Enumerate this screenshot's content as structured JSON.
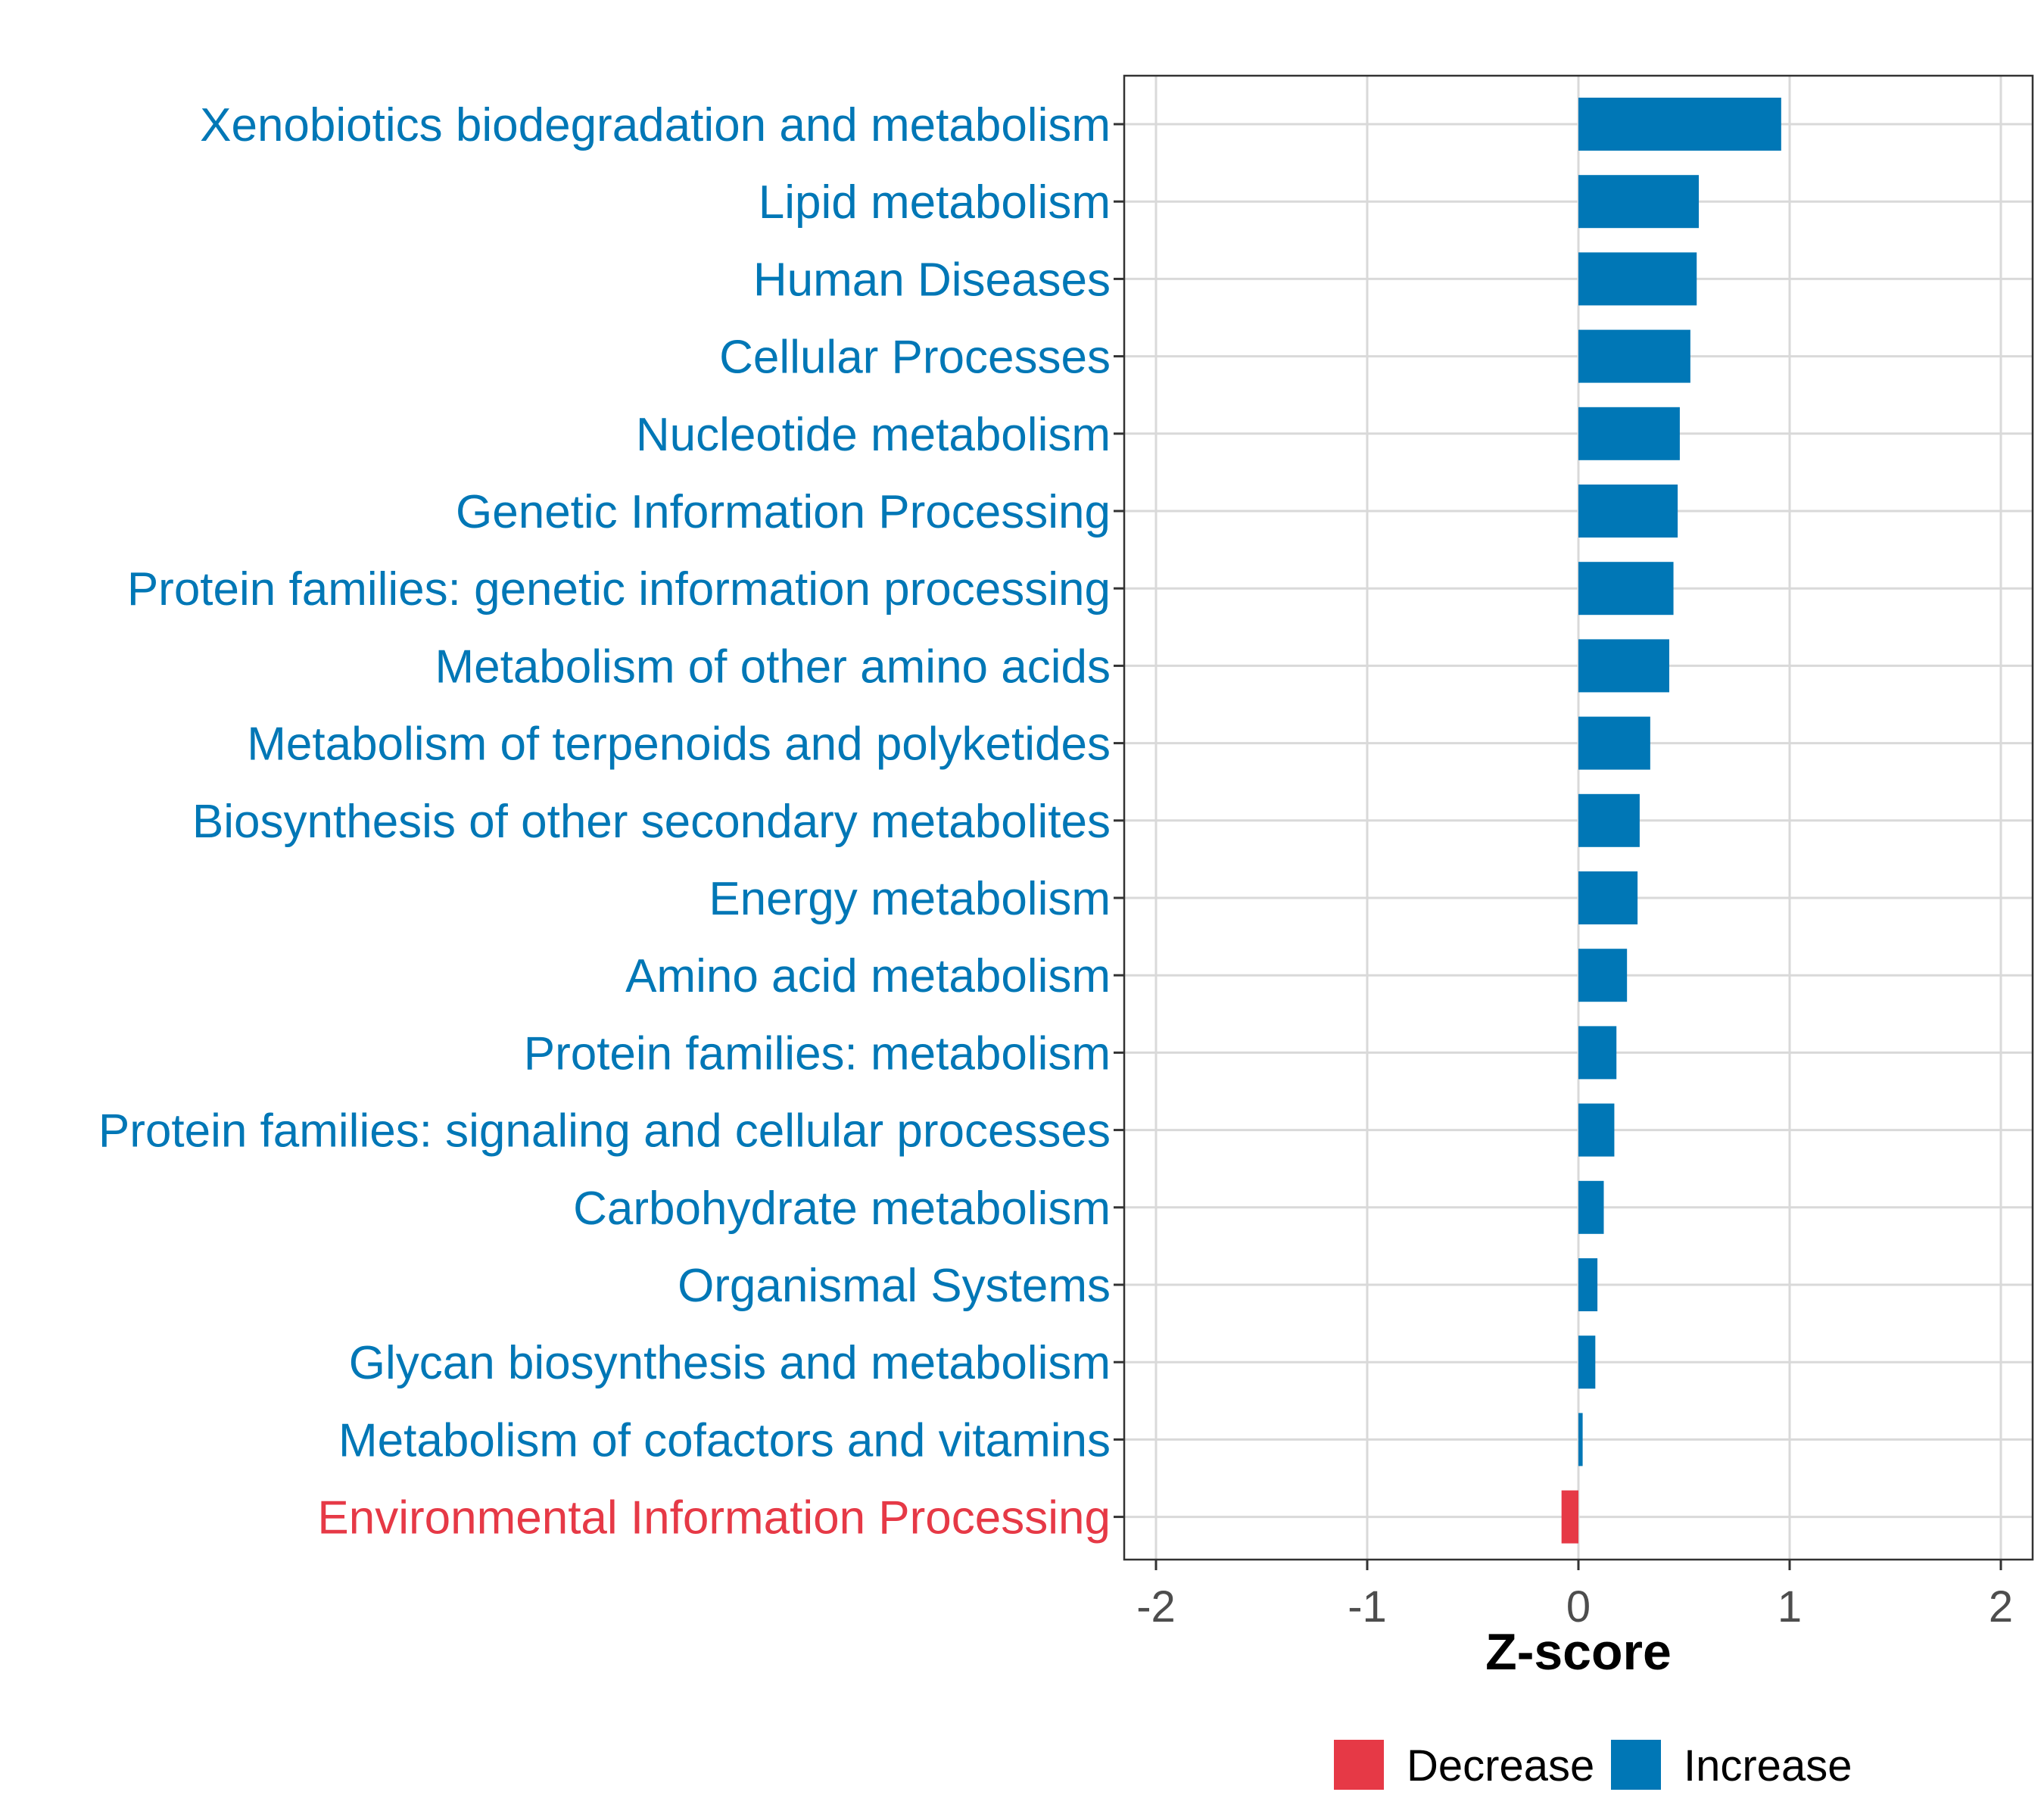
{
  "chart_data": {
    "type": "bar",
    "orientation": "horizontal",
    "xlabel": "Z-score",
    "xlim": [
      -2.15,
      2.15
    ],
    "x_ticks": [
      -2,
      -1,
      0,
      1,
      2
    ],
    "x_tick_labels": [
      "-2",
      "-1",
      "0",
      "1",
      "2"
    ],
    "grid": true,
    "legend_position": "bottom",
    "categories": [
      "Xenobiotics biodegradation and metabolism",
      "Lipid metabolism",
      "Human Diseases",
      "Cellular Processes",
      "Nucleotide metabolism",
      "Genetic Information Processing",
      "Protein families: genetic information processing",
      "Metabolism of other amino acids",
      "Metabolism of terpenoids and polyketides",
      "Biosynthesis of other secondary metabolites",
      "Energy metabolism",
      "Amino acid metabolism",
      "Protein families: metabolism",
      "Protein families: signaling and cellular processes",
      "Carbohydrate metabolism",
      "Organismal Systems",
      "Glycan biosynthesis and metabolism",
      "Metabolism of cofactors and vitamins",
      "Environmental Information Processing"
    ],
    "values": [
      0.96,
      0.57,
      0.56,
      0.53,
      0.48,
      0.47,
      0.45,
      0.43,
      0.34,
      0.29,
      0.28,
      0.23,
      0.18,
      0.17,
      0.12,
      0.09,
      0.08,
      0.02,
      -0.08
    ],
    "groups": [
      "Increase",
      "Increase",
      "Increase",
      "Increase",
      "Increase",
      "Increase",
      "Increase",
      "Increase",
      "Increase",
      "Increase",
      "Increase",
      "Increase",
      "Increase",
      "Increase",
      "Increase",
      "Increase",
      "Increase",
      "Increase",
      "Decrease"
    ],
    "legend": [
      {
        "name": "Decrease",
        "color": "#E63946"
      },
      {
        "name": "Increase",
        "color": "#0077B6"
      }
    ]
  },
  "colors": {
    "increase": "#0077B6",
    "decrease": "#E63946",
    "grid": "#d9d9d9",
    "panel_border": "#333333",
    "tick_text": "#4d4d4d"
  }
}
